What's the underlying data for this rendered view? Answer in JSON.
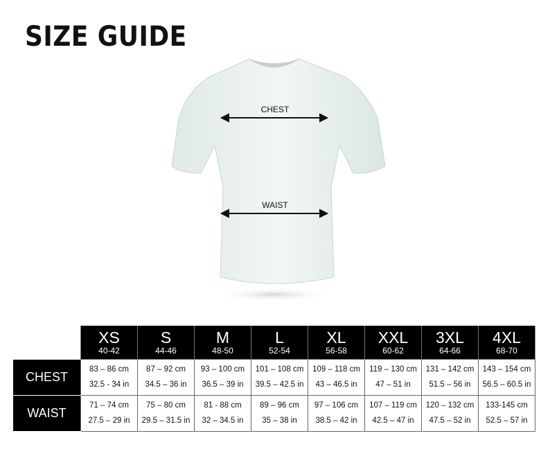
{
  "title": "SIZE GUIDE",
  "measurements": {
    "chest": "CHEST",
    "waist": "WAIST"
  },
  "colors": {
    "header_bg": "#000000",
    "shirt": "#e9f1ef"
  },
  "sizes": [
    {
      "size": "XS",
      "eu": "40-42"
    },
    {
      "size": "S",
      "eu": "44-46"
    },
    {
      "size": "M",
      "eu": "48-50"
    },
    {
      "size": "L",
      "eu": "52-54"
    },
    {
      "size": "XL",
      "eu": "56-58"
    },
    {
      "size": "XXL",
      "eu": "60-62"
    },
    {
      "size": "3XL",
      "eu": "64-66"
    },
    {
      "size": "4XL",
      "eu": "68-70"
    }
  ],
  "rows": [
    {
      "label": "CHEST",
      "cells": [
        {
          "cm": "83 – 86 cm",
          "in": "32.5 - 34 in"
        },
        {
          "cm": "87 – 92 cm",
          "in": "34.5 – 36 in"
        },
        {
          "cm": "93 – 100 cm",
          "in": "36.5 – 39 in"
        },
        {
          "cm": "101 – 108 cm",
          "in": "39.5 – 42.5 in"
        },
        {
          "cm": "109 – 118 cm",
          "in": "43 – 46.5 in"
        },
        {
          "cm": "119 – 130 cm",
          "in": "47 – 51 in"
        },
        {
          "cm": "131 – 142 cm",
          "in": "51.5 – 56 in"
        },
        {
          "cm": "143 – 154 cm",
          "in": "56.5 – 60.5 in"
        }
      ]
    },
    {
      "label": "WAIST",
      "cells": [
        {
          "cm": "71 – 74 cm",
          "in": "27.5 – 29 in"
        },
        {
          "cm": "75 – 80 cm",
          "in": "29.5 – 31.5 in"
        },
        {
          "cm": "81 - 88 cm",
          "in": "32 – 34.5 in"
        },
        {
          "cm": "89 – 96 cm",
          "in": "35 – 38 in"
        },
        {
          "cm": "97 – 106 cm",
          "in": "38.5 – 42 in"
        },
        {
          "cm": "107 – 119 cm",
          "in": "42.5 – 47 in"
        },
        {
          "cm": "120 – 132 cm",
          "in": "47.5  – 52 in"
        },
        {
          "cm": "133-145 cm",
          "in": "52.5 – 57 in"
        }
      ]
    }
  ]
}
